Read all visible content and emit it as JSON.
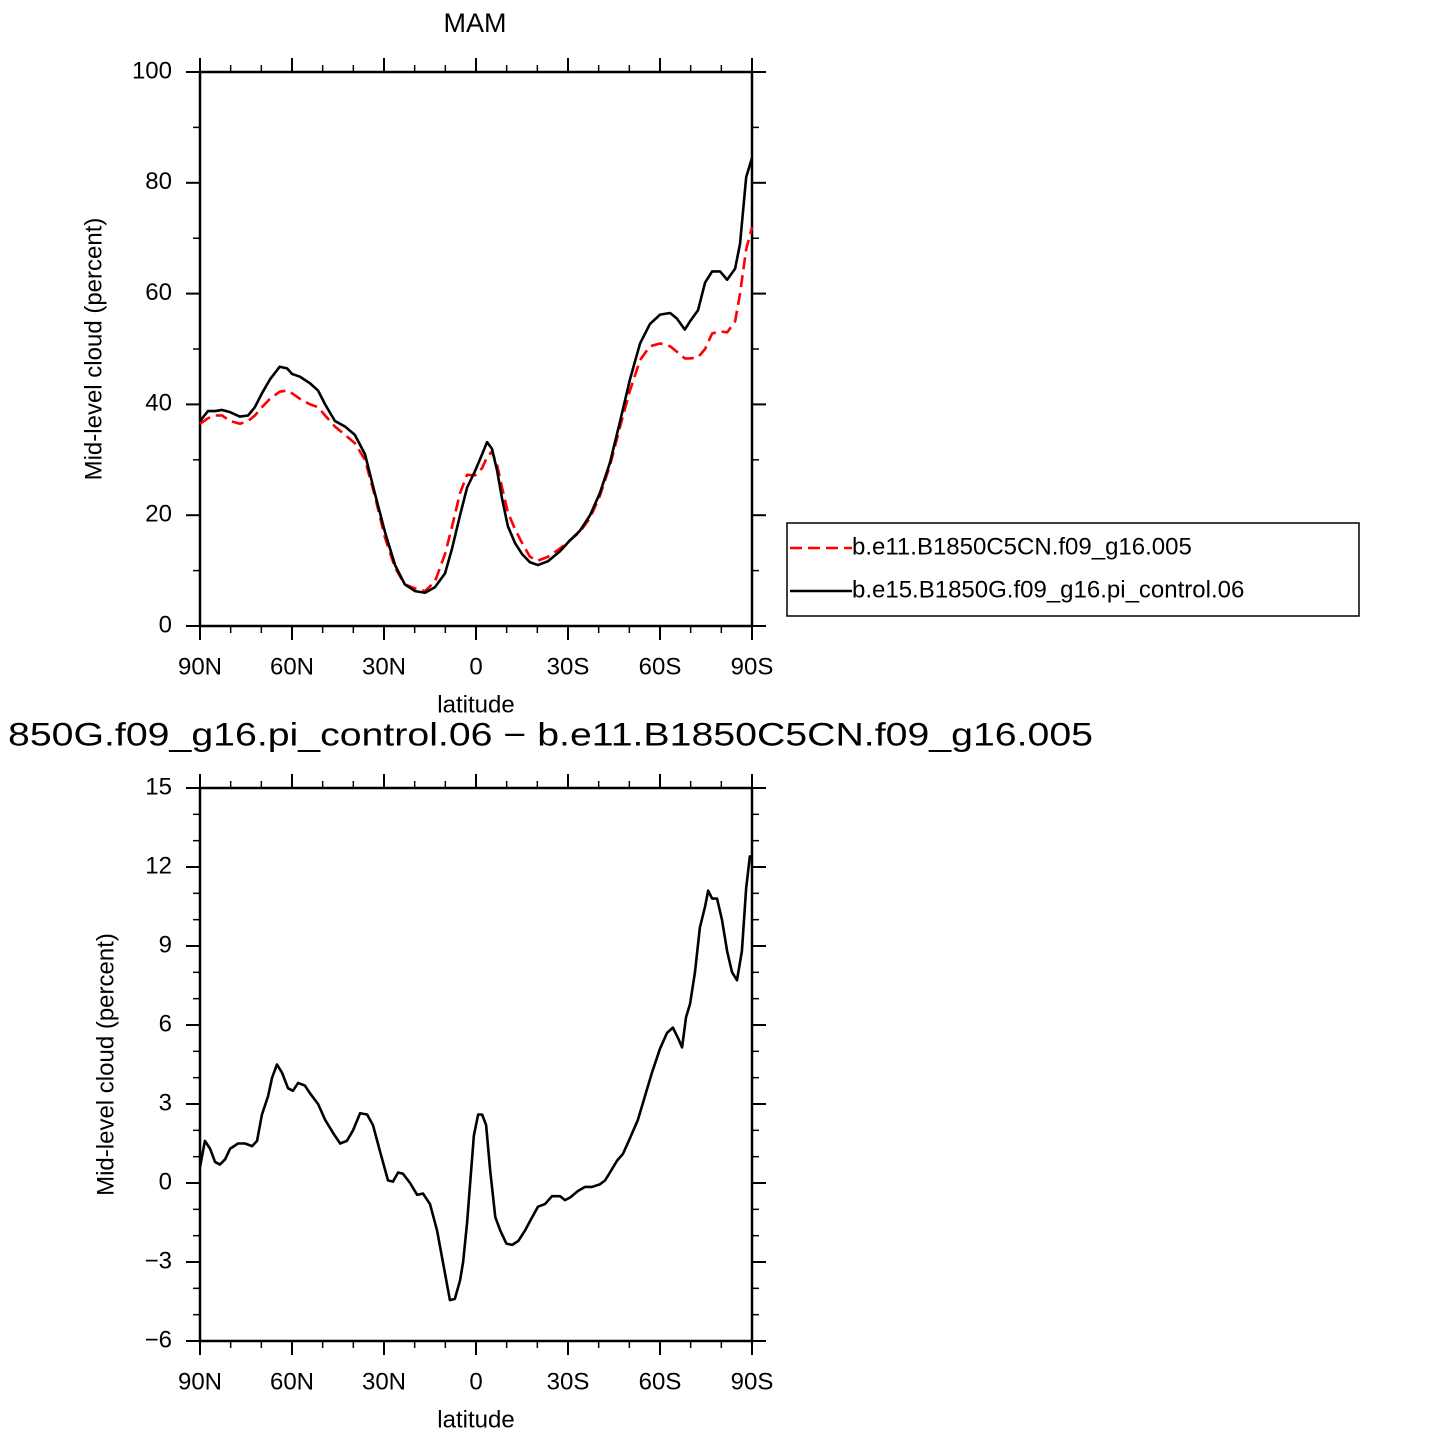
{
  "chart_data": [
    {
      "type": "line",
      "title": "MAM",
      "xlabel": "latitude",
      "ylabel": "Mid-level cloud (percent)",
      "x": [
        90,
        87.4,
        85.1,
        82.8,
        80.2,
        77,
        74.3,
        72.1,
        69.8,
        67.2,
        64,
        61.6,
        60,
        57.4,
        54.1,
        51.5,
        49.2,
        46,
        42.7,
        39.5,
        36.2,
        33,
        29.7,
        26.4,
        23.2,
        19.9,
        16.6,
        13.4,
        10.1,
        7.8,
        5.2,
        2.9,
        0.3,
        -2,
        -3.6,
        -5.2,
        -6.9,
        -8.5,
        -10.4,
        -12.7,
        -15,
        -17.6,
        -20.2,
        -23.5,
        -27.4,
        -30.7,
        -33.9,
        -37.2,
        -40.4,
        -43.7,
        -47,
        -50.2,
        -53.5,
        -56.7,
        -60,
        -63.3,
        -65.5,
        -68.1,
        -69.8,
        -72.4,
        -74.7,
        -77,
        -79.6,
        -81.9,
        -84.5,
        -86.1,
        -88.1,
        -90
      ],
      "series": [
        {
          "name": "b.e11.B1850C5CN.f09_g16.005",
          "color": "#ff0000",
          "dash": "dashed",
          "values": [
            36.5,
            37.5,
            38,
            38,
            37,
            36.5,
            37,
            38,
            39.5,
            41,
            42.3,
            42.5,
            42,
            41,
            40,
            39.5,
            38,
            36,
            34.5,
            33,
            30,
            23.5,
            16,
            10.5,
            7.5,
            6.8,
            6.3,
            8,
            13,
            18,
            24,
            27.3,
            27.2,
            28.5,
            30.5,
            31.5,
            29,
            25,
            20.5,
            17.5,
            15,
            12.5,
            11.8,
            12.5,
            14,
            15.5,
            17,
            19.5,
            23.5,
            29,
            36,
            42.5,
            48,
            50.5,
            51,
            50.5,
            49.5,
            48.3,
            48.3,
            48.5,
            50,
            52.8,
            53.2,
            53,
            55,
            60,
            68,
            72
          ]
        },
        {
          "name": "b.e15.B1850G.f09_g16.pi_control.06",
          "color": "#000000",
          "dash": "solid",
          "values": [
            37,
            38.8,
            38.8,
            39,
            38.6,
            37.8,
            38,
            39.5,
            42,
            44.5,
            46.8,
            46.5,
            45.5,
            45,
            43.8,
            42.5,
            40,
            37,
            36,
            34.5,
            31,
            24,
            17,
            11,
            7.5,
            6.3,
            6,
            7,
            9.5,
            14,
            20,
            25,
            28,
            31,
            33.2,
            32,
            28,
            23,
            18,
            15,
            13,
            11.5,
            11,
            11.7,
            13.5,
            15.5,
            17.2,
            20,
            24,
            29.5,
            37,
            44.5,
            51,
            54.5,
            56.2,
            56.5,
            55.5,
            53.5,
            55,
            57,
            62,
            64,
            64,
            62.5,
            64.5,
            69,
            81,
            84.5
          ]
        }
      ],
      "xlim": [
        90,
        -90
      ],
      "xticks": [
        {
          "value": 90,
          "label": "90N"
        },
        {
          "value": 60,
          "label": "60N"
        },
        {
          "value": 30,
          "label": "30N"
        },
        0,
        {
          "value": -30,
          "label": "30S"
        },
        {
          "value": -60,
          "label": "60S"
        },
        {
          "value": -90,
          "label": "90S"
        }
      ],
      "xminorticks": [
        80,
        70,
        50,
        40,
        20,
        10,
        -10,
        -20,
        -40,
        -50,
        -70,
        -80
      ],
      "ylim": [
        0,
        100
      ],
      "yticks": [
        0,
        20,
        40,
        60,
        80,
        100
      ],
      "yminorticks": [
        10,
        30,
        50,
        70,
        90
      ],
      "legend": "right"
    },
    {
      "type": "line",
      "title": "850G.f09_g16.pi_control.06 − b.e11.B1850C5CN.f09_g16.005",
      "xlabel": "latitude",
      "ylabel": "Mid-level cloud (percent)",
      "x": [
        90,
        88.4,
        86.7,
        85.1,
        83.5,
        81.8,
        80.2,
        77.6,
        75.3,
        73,
        71.4,
        69.8,
        67.8,
        66.5,
        64.9,
        63.3,
        61.3,
        59.7,
        58,
        55.8,
        54.1,
        51.5,
        49.2,
        46.6,
        44.3,
        42.1,
        40.1,
        37.8,
        35.5,
        33.6,
        31.3,
        28.7,
        27.1,
        25.4,
        23.8,
        21.5,
        19.2,
        17.3,
        15,
        12.7,
        10.8,
        8.5,
        6.9,
        5.2,
        4.2,
        2.9,
        1.9,
        0.7,
        -0.7,
        -2,
        -3.3,
        -4.6,
        -6.3,
        -7.9,
        -9.9,
        -11.8,
        -13.8,
        -16,
        -18.3,
        -20.2,
        -22.5,
        -24.8,
        -27.4,
        -29,
        -30.7,
        -33.3,
        -35.5,
        -37.8,
        -40.4,
        -42.1,
        -43.7,
        -46,
        -47.9,
        -50.2,
        -52.8,
        -55.1,
        -57.4,
        -60,
        -62.3,
        -64.2,
        -65.9,
        -67.2,
        -68.5,
        -69.8,
        -71.4,
        -73,
        -74.7,
        -75.7,
        -77,
        -78.6,
        -80.2,
        -81.9,
        -83.5,
        -85.1,
        -86.7,
        -88.1,
        -89.3,
        -90
      ],
      "color": "#000000",
      "values": [
        0.6,
        1.6,
        1.3,
        0.8,
        0.7,
        0.9,
        1.3,
        1.5,
        1.5,
        1.4,
        1.6,
        2.6,
        3.3,
        4.0,
        4.5,
        4.2,
        3.6,
        3.5,
        3.8,
        3.7,
        3.4,
        3.0,
        2.4,
        1.9,
        1.5,
        1.6,
        2.0,
        2.65,
        2.6,
        2.2,
        1.2,
        0.1,
        0.05,
        0.4,
        0.35,
        0,
        -0.45,
        -0.4,
        -0.8,
        -1.8,
        -3,
        -4.45,
        -4.4,
        -3.7,
        -3,
        -1.5,
        0,
        1.8,
        2.6,
        2.6,
        2.2,
        0.5,
        -1.3,
        -1.8,
        -2.3,
        -2.35,
        -2.2,
        -1.8,
        -1.3,
        -0.9,
        -0.8,
        -0.5,
        -0.5,
        -0.65,
        -0.55,
        -0.3,
        -0.15,
        -0.15,
        -0.05,
        0.1,
        0.4,
        0.85,
        1.1,
        1.7,
        2.4,
        3.3,
        4.2,
        5.1,
        5.7,
        5.9,
        5.5,
        5.15,
        6.3,
        6.8,
        8,
        9.7,
        10.5,
        11.1,
        10.8,
        10.8,
        10,
        8.8,
        8,
        7.7,
        8.8,
        11.2,
        12.4,
        12.4
      ],
      "xlim": [
        90,
        -90
      ],
      "xticks": [
        {
          "value": 90,
          "label": "90N"
        },
        {
          "value": 60,
          "label": "60N"
        },
        {
          "value": 30,
          "label": "30N"
        },
        0,
        {
          "value": -30,
          "label": "30S"
        },
        {
          "value": -60,
          "label": "60S"
        },
        {
          "value": -90,
          "label": "90S"
        }
      ],
      "xminorticks": [
        80,
        70,
        50,
        40,
        20,
        10,
        -10,
        -20,
        -40,
        -50,
        -70,
        -80
      ],
      "ylim": [
        -6,
        15
      ],
      "yticks": [
        {
          "value": -6,
          "label": "−6"
        },
        {
          "value": -3,
          "label": "−3"
        },
        0,
        3,
        6,
        9,
        12,
        15
      ],
      "yminorticks": [
        -5,
        -4,
        -2,
        -1,
        1,
        2,
        4,
        5,
        7,
        8,
        10,
        11,
        13,
        14
      ]
    }
  ]
}
